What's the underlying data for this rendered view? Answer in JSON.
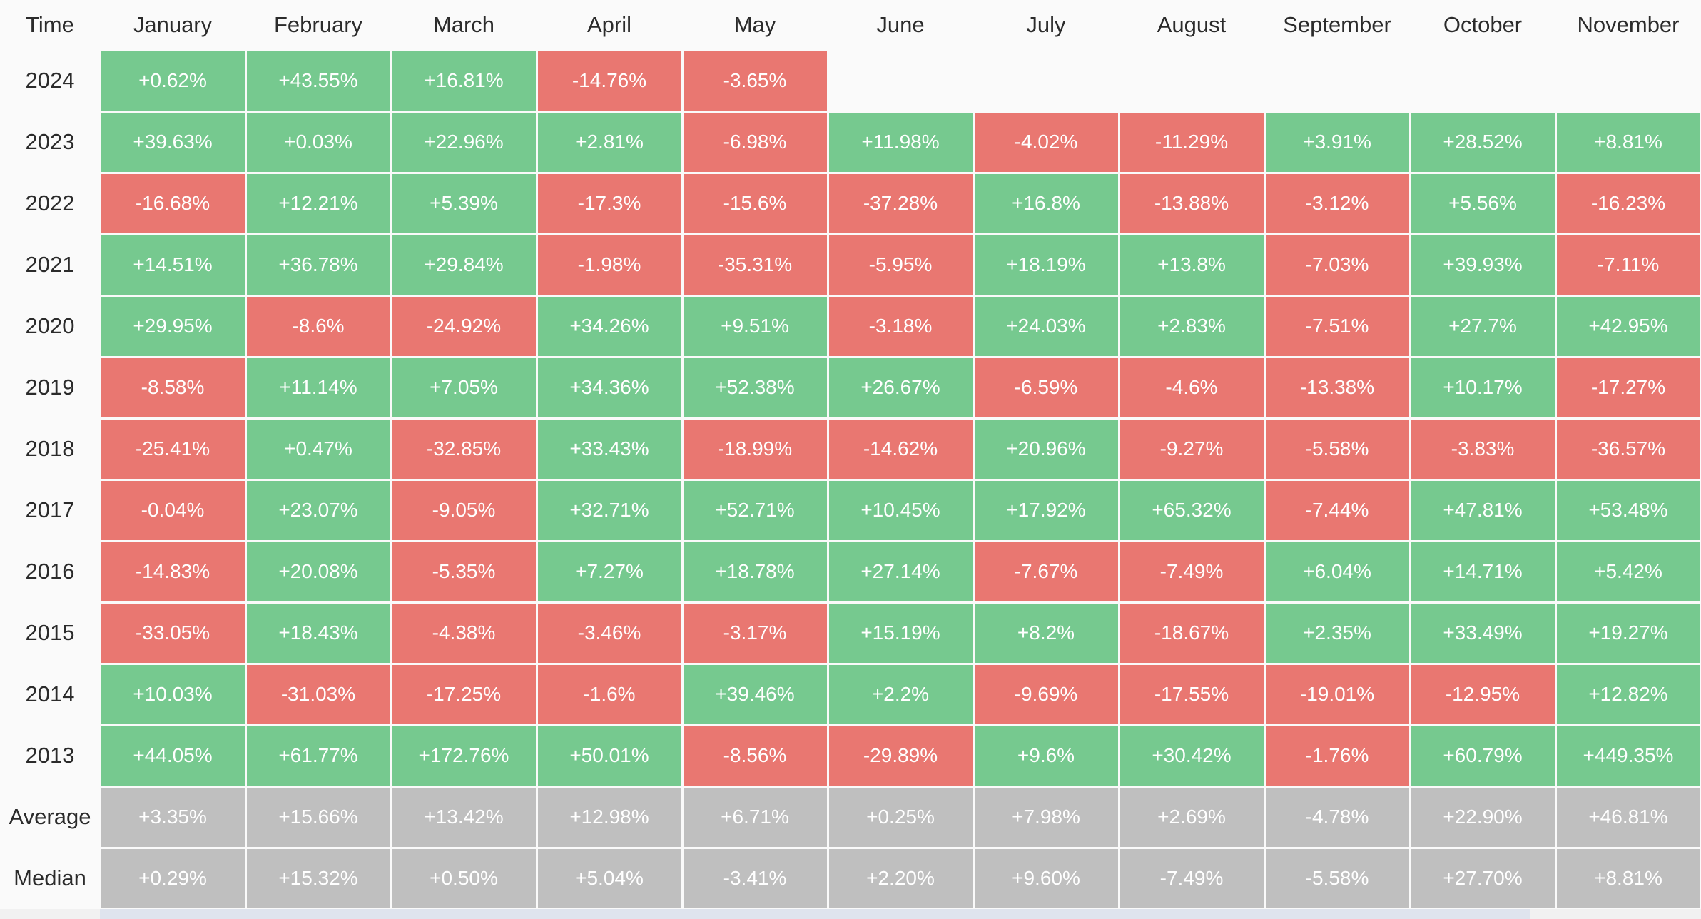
{
  "table": {
    "header": [
      "Time",
      "January",
      "February",
      "March",
      "April",
      "May",
      "June",
      "July",
      "August",
      "September",
      "October",
      "November"
    ],
    "rows": [
      {
        "label": "2024",
        "cells": [
          "+0.62%",
          "+43.55%",
          "+16.81%",
          "-14.76%",
          "-3.65%"
        ]
      },
      {
        "label": "2023",
        "cells": [
          "+39.63%",
          "+0.03%",
          "+22.96%",
          "+2.81%",
          "-6.98%",
          "+11.98%",
          "-4.02%",
          "-11.29%",
          "+3.91%",
          "+28.52%",
          "+8.81%"
        ]
      },
      {
        "label": "2022",
        "cells": [
          "-16.68%",
          "+12.21%",
          "+5.39%",
          "-17.3%",
          "-15.6%",
          "-37.28%",
          "+16.8%",
          "-13.88%",
          "-3.12%",
          "+5.56%",
          "-16.23%"
        ]
      },
      {
        "label": "2021",
        "cells": [
          "+14.51%",
          "+36.78%",
          "+29.84%",
          "-1.98%",
          "-35.31%",
          "-5.95%",
          "+18.19%",
          "+13.8%",
          "-7.03%",
          "+39.93%",
          "-7.11%"
        ]
      },
      {
        "label": "2020",
        "cells": [
          "+29.95%",
          "-8.6%",
          "-24.92%",
          "+34.26%",
          "+9.51%",
          "-3.18%",
          "+24.03%",
          "+2.83%",
          "-7.51%",
          "+27.7%",
          "+42.95%"
        ]
      },
      {
        "label": "2019",
        "cells": [
          "-8.58%",
          "+11.14%",
          "+7.05%",
          "+34.36%",
          "+52.38%",
          "+26.67%",
          "-6.59%",
          "-4.6%",
          "-13.38%",
          "+10.17%",
          "-17.27%"
        ]
      },
      {
        "label": "2018",
        "cells": [
          "-25.41%",
          "+0.47%",
          "-32.85%",
          "+33.43%",
          "-18.99%",
          "-14.62%",
          "+20.96%",
          "-9.27%",
          "-5.58%",
          "-3.83%",
          "-36.57%"
        ]
      },
      {
        "label": "2017",
        "cells": [
          "-0.04%",
          "+23.07%",
          "-9.05%",
          "+32.71%",
          "+52.71%",
          "+10.45%",
          "+17.92%",
          "+65.32%",
          "-7.44%",
          "+47.81%",
          "+53.48%"
        ]
      },
      {
        "label": "2016",
        "cells": [
          "-14.83%",
          "+20.08%",
          "-5.35%",
          "+7.27%",
          "+18.78%",
          "+27.14%",
          "-7.67%",
          "-7.49%",
          "+6.04%",
          "+14.71%",
          "+5.42%"
        ]
      },
      {
        "label": "2015",
        "cells": [
          "-33.05%",
          "+18.43%",
          "-4.38%",
          "-3.46%",
          "-3.17%",
          "+15.19%",
          "+8.2%",
          "-18.67%",
          "+2.35%",
          "+33.49%",
          "+19.27%"
        ]
      },
      {
        "label": "2014",
        "cells": [
          "+10.03%",
          "-31.03%",
          "-17.25%",
          "-1.6%",
          "+39.46%",
          "+2.2%",
          "-9.69%",
          "-17.55%",
          "-19.01%",
          "-12.95%",
          "+12.82%"
        ]
      },
      {
        "label": "2013",
        "cells": [
          "+44.05%",
          "+61.77%",
          "+172.76%",
          "+50.01%",
          "-8.56%",
          "-29.89%",
          "+9.6%",
          "+30.42%",
          "-1.76%",
          "+60.79%",
          "+449.35%"
        ]
      },
      {
        "label": "Average",
        "cells": [
          "+3.35%",
          "+15.66%",
          "+13.42%",
          "+12.98%",
          "+6.71%",
          "+0.25%",
          "+7.98%",
          "+2.69%",
          "-4.78%",
          "+22.90%",
          "+46.81%"
        ]
      },
      {
        "label": "Median",
        "cells": [
          "+0.29%",
          "+15.32%",
          "+0.50%",
          "+5.04%",
          "-3.41%",
          "+2.20%",
          "+9.60%",
          "-7.49%",
          "-5.58%",
          "+27.70%",
          "+8.81%"
        ]
      }
    ]
  }
}
